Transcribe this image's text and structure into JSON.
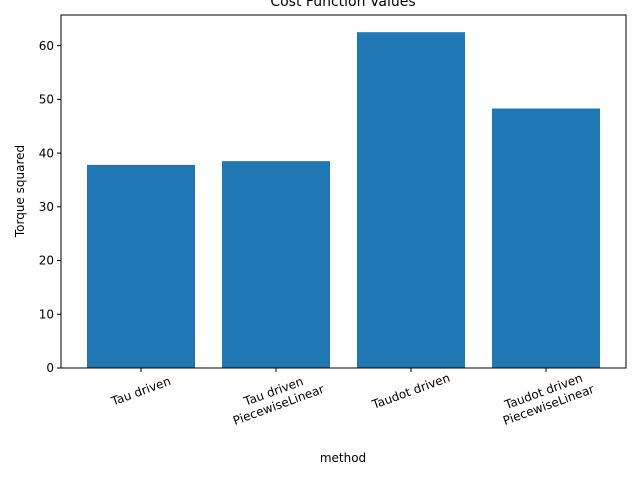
{
  "chart_data": {
    "type": "bar",
    "title": "Cost Function Values",
    "xlabel": "method",
    "ylabel": "Torque squared",
    "categories": [
      [
        "Tau driven"
      ],
      [
        "Tau driven",
        "PiecewiseLinear"
      ],
      [
        "Taudot driven"
      ],
      [
        "Taudot driven",
        "PiecewiseLinear"
      ]
    ],
    "values": [
      37.8,
      38.5,
      62.5,
      48.3
    ],
    "ylim": [
      0,
      65.7
    ],
    "yticks": [
      0,
      10,
      20,
      30,
      40,
      50,
      60
    ],
    "xtick_rotation_deg": -20,
    "grid": false,
    "legend": "none",
    "bar_color": "#1f77b4"
  }
}
